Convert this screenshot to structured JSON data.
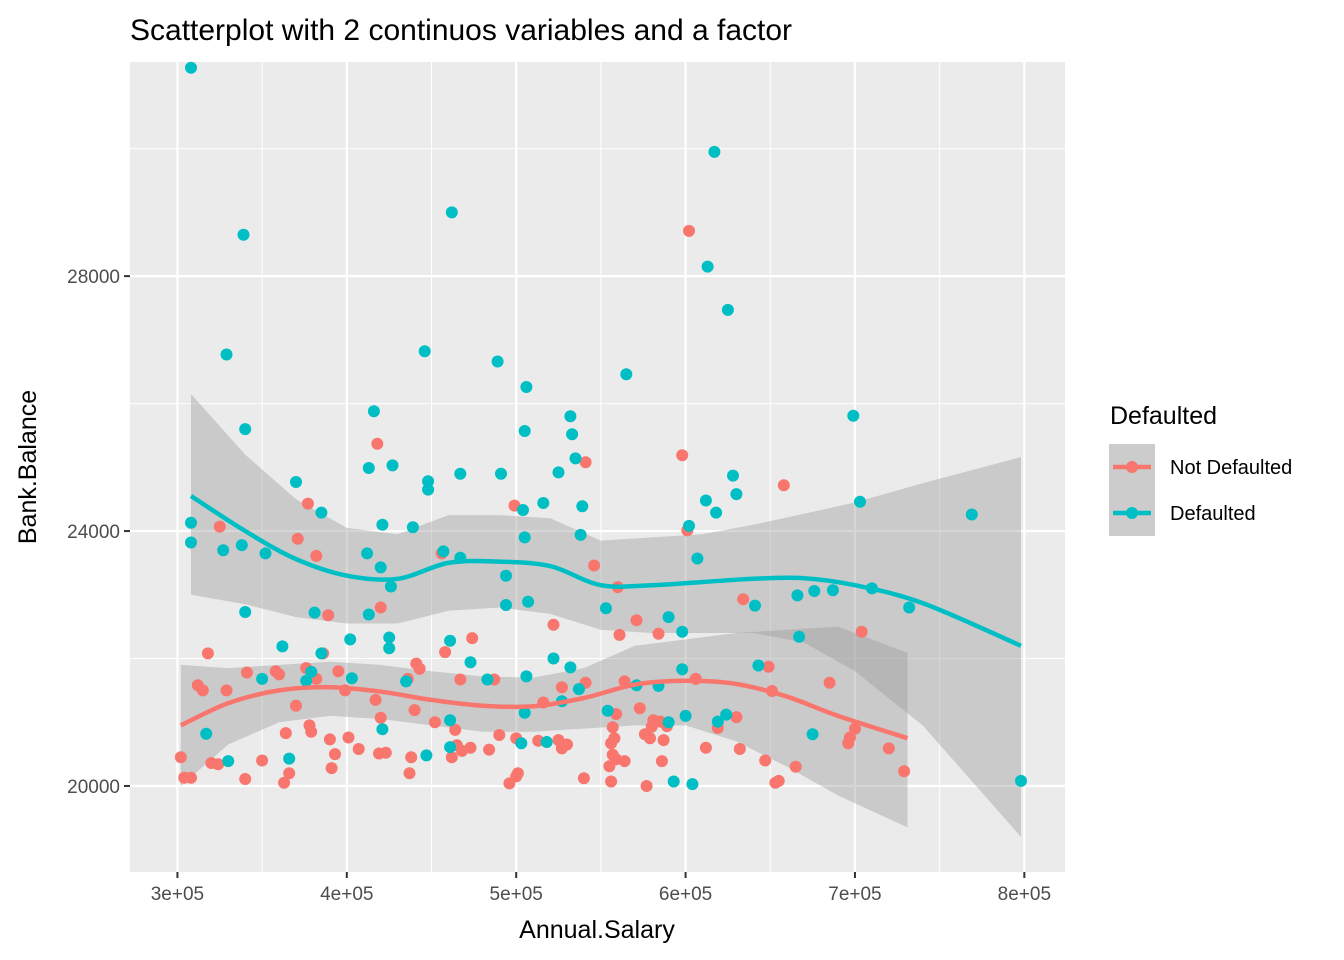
{
  "chart_data": {
    "type": "scatter",
    "title": "Scatterplot with 2 continuos variables and a factor",
    "xlabel": "Annual.Salary",
    "ylabel": "Bank.Balance",
    "xlim": [
      272000,
      824000
    ],
    "ylim": [
      18650,
      31360
    ],
    "x_ticks": [
      300000,
      400000,
      500000,
      600000,
      700000,
      800000
    ],
    "x_tick_labels": [
      "3e+05",
      "4e+05",
      "5e+05",
      "6e+05",
      "7e+05",
      "8e+05"
    ],
    "y_ticks": [
      20000,
      24000,
      28000
    ],
    "y_tick_labels": [
      "20000",
      "24000",
      "28000"
    ],
    "grid": true,
    "legend": {
      "title": "Defaulted",
      "position": "right",
      "entries": [
        {
          "label": "Not Defaulted",
          "color": "#F8766D"
        },
        {
          "label": "Defaulted",
          "color": "#00BFC4"
        }
      ]
    },
    "series": [
      {
        "name": "Not Defaulted",
        "color": "#F8766D",
        "points": [
          [
            302000,
            20450
          ],
          [
            304000,
            20130
          ],
          [
            308000,
            20130
          ],
          [
            312000,
            21580
          ],
          [
            315000,
            21500
          ],
          [
            318000,
            22080
          ],
          [
            320000,
            20360
          ],
          [
            324000,
            20340
          ],
          [
            325000,
            24070
          ],
          [
            329000,
            21500
          ],
          [
            340000,
            20110
          ],
          [
            341000,
            21780
          ],
          [
            350000,
            20400
          ],
          [
            358000,
            21800
          ],
          [
            360000,
            21750
          ],
          [
            363000,
            20050
          ],
          [
            364000,
            20830
          ],
          [
            366000,
            20200
          ],
          [
            370000,
            21260
          ],
          [
            371000,
            23880
          ],
          [
            376000,
            21850
          ],
          [
            377000,
            24430
          ],
          [
            378000,
            20950
          ],
          [
            379000,
            20850
          ],
          [
            382000,
            21680
          ],
          [
            382000,
            23610
          ],
          [
            386000,
            22080
          ],
          [
            389000,
            22680
          ],
          [
            390000,
            20730
          ],
          [
            391000,
            20280
          ],
          [
            393000,
            20500
          ],
          [
            395000,
            21800
          ],
          [
            399000,
            21500
          ],
          [
            401000,
            20760
          ],
          [
            407000,
            20580
          ],
          [
            417000,
            21350
          ],
          [
            418000,
            25370
          ],
          [
            419000,
            20510
          ],
          [
            420000,
            21070
          ],
          [
            420000,
            22800
          ],
          [
            423000,
            20520
          ],
          [
            436000,
            21680
          ],
          [
            437000,
            20200
          ],
          [
            438000,
            20450
          ],
          [
            440000,
            21190
          ],
          [
            441000,
            21920
          ],
          [
            443000,
            21840
          ],
          [
            452000,
            21000
          ],
          [
            456000,
            23650
          ],
          [
            458000,
            22100
          ],
          [
            462000,
            20450
          ],
          [
            464000,
            20880
          ],
          [
            465000,
            20640
          ],
          [
            467000,
            21670
          ],
          [
            468000,
            20550
          ],
          [
            473000,
            20600
          ],
          [
            474000,
            22320
          ],
          [
            484000,
            20570
          ],
          [
            487000,
            21670
          ],
          [
            490000,
            20800
          ],
          [
            496000,
            20040
          ],
          [
            499000,
            24400
          ],
          [
            500000,
            20750
          ],
          [
            500000,
            20150
          ],
          [
            501000,
            20200
          ],
          [
            513000,
            20710
          ],
          [
            516000,
            21310
          ],
          [
            522000,
            22530
          ],
          [
            525000,
            20720
          ],
          [
            527000,
            20590
          ],
          [
            527000,
            21550
          ],
          [
            530000,
            20650
          ],
          [
            540000,
            20120
          ],
          [
            541000,
            21620
          ],
          [
            541000,
            25080
          ],
          [
            546000,
            23460
          ],
          [
            555000,
            20310
          ],
          [
            556000,
            20670
          ],
          [
            556000,
            20070
          ],
          [
            557000,
            20920
          ],
          [
            557000,
            20490
          ],
          [
            558000,
            20750
          ],
          [
            559000,
            21130
          ],
          [
            559000,
            20420
          ],
          [
            560000,
            23120
          ],
          [
            561000,
            22370
          ],
          [
            564000,
            20390
          ],
          [
            564000,
            21640
          ],
          [
            571000,
            22600
          ],
          [
            573000,
            21220
          ],
          [
            576000,
            20810
          ],
          [
            577000,
            20000
          ],
          [
            579000,
            20750
          ],
          [
            580000,
            20930
          ],
          [
            581000,
            21030
          ],
          [
            585000,
            21010
          ],
          [
            584000,
            22390
          ],
          [
            586000,
            20390
          ],
          [
            587000,
            20720
          ],
          [
            589000,
            20940
          ],
          [
            598000,
            25190
          ],
          [
            601000,
            24010
          ],
          [
            602000,
            28710
          ],
          [
            612000,
            20600
          ],
          [
            619000,
            20910
          ],
          [
            630000,
            21080
          ],
          [
            632000,
            20580
          ],
          [
            634000,
            22930
          ],
          [
            647000,
            20400
          ],
          [
            651000,
            21490
          ],
          [
            653000,
            20050
          ],
          [
            655000,
            20080
          ],
          [
            658000,
            24720
          ],
          [
            665000,
            20300
          ],
          [
            696000,
            20670
          ],
          [
            697000,
            20760
          ],
          [
            704000,
            22420
          ],
          [
            720000,
            20590
          ],
          [
            729000,
            20230
          ],
          [
            649000,
            21870
          ],
          [
            685000,
            21620
          ],
          [
            606000,
            21680
          ],
          [
            700000,
            20900
          ]
        ]
      },
      {
        "name": "Defaulted",
        "color": "#00BFC4",
        "points": [
          [
            308000,
            31270
          ],
          [
            308000,
            24130
          ],
          [
            308000,
            23820
          ],
          [
            317000,
            20820
          ],
          [
            327000,
            23700
          ],
          [
            329000,
            26770
          ],
          [
            330000,
            20390
          ],
          [
            338000,
            23780
          ],
          [
            339000,
            28650
          ],
          [
            340000,
            25600
          ],
          [
            340000,
            22730
          ],
          [
            350000,
            21680
          ],
          [
            352000,
            23650
          ],
          [
            362000,
            22190
          ],
          [
            366000,
            20430
          ],
          [
            370000,
            24770
          ],
          [
            376000,
            21650
          ],
          [
            379000,
            21790
          ],
          [
            381000,
            22720
          ],
          [
            385000,
            22080
          ],
          [
            385000,
            24290
          ],
          [
            402000,
            22300
          ],
          [
            403000,
            21690
          ],
          [
            412000,
            23650
          ],
          [
            413000,
            22690
          ],
          [
            413000,
            24990
          ],
          [
            416000,
            25880
          ],
          [
            420000,
            23430
          ],
          [
            421000,
            24100
          ],
          [
            421000,
            20890
          ],
          [
            425000,
            22160
          ],
          [
            425000,
            22330
          ],
          [
            426000,
            23130
          ],
          [
            427000,
            25030
          ],
          [
            435000,
            21640
          ],
          [
            439000,
            24060
          ],
          [
            446000,
            26820
          ],
          [
            447000,
            20480
          ],
          [
            448000,
            24780
          ],
          [
            448000,
            24650
          ],
          [
            457000,
            23680
          ],
          [
            461000,
            21030
          ],
          [
            461000,
            20610
          ],
          [
            461000,
            22280
          ],
          [
            462000,
            29000
          ],
          [
            467000,
            24900
          ],
          [
            467000,
            23580
          ],
          [
            473000,
            21940
          ],
          [
            483000,
            21670
          ],
          [
            489000,
            26660
          ],
          [
            491000,
            24900
          ],
          [
            494000,
            23300
          ],
          [
            494000,
            22840
          ],
          [
            503000,
            20670
          ],
          [
            504000,
            24330
          ],
          [
            505000,
            21150
          ],
          [
            505000,
            25570
          ],
          [
            505000,
            23900
          ],
          [
            506000,
            26260
          ],
          [
            506000,
            21720
          ],
          [
            507000,
            22890
          ],
          [
            516000,
            24440
          ],
          [
            518000,
            20690
          ],
          [
            522000,
            22000
          ],
          [
            525000,
            24920
          ],
          [
            527000,
            21330
          ],
          [
            532000,
            21860
          ],
          [
            532000,
            25800
          ],
          [
            533000,
            25520
          ],
          [
            535000,
            25140
          ],
          [
            537000,
            21520
          ],
          [
            538000,
            23940
          ],
          [
            539000,
            24390
          ],
          [
            553000,
            22790
          ],
          [
            554000,
            21180
          ],
          [
            565000,
            26460
          ],
          [
            571000,
            21580
          ],
          [
            584000,
            21570
          ],
          [
            590000,
            21000
          ],
          [
            590000,
            22650
          ],
          [
            593000,
            20070
          ],
          [
            598000,
            21830
          ],
          [
            598000,
            22420
          ],
          [
            600000,
            21100
          ],
          [
            602000,
            24080
          ],
          [
            604000,
            20030
          ],
          [
            607000,
            23570
          ],
          [
            612000,
            24480
          ],
          [
            613000,
            28150
          ],
          [
            617000,
            29950
          ],
          [
            618000,
            24290
          ],
          [
            619000,
            21010
          ],
          [
            624000,
            21120
          ],
          [
            625000,
            27470
          ],
          [
            628000,
            24870
          ],
          [
            630000,
            24580
          ],
          [
            641000,
            22830
          ],
          [
            643000,
            21890
          ],
          [
            666000,
            22990
          ],
          [
            667000,
            22340
          ],
          [
            675000,
            20810
          ],
          [
            676000,
            23060
          ],
          [
            687000,
            23070
          ],
          [
            699000,
            25810
          ],
          [
            703000,
            24460
          ],
          [
            710000,
            23100
          ],
          [
            732000,
            22800
          ],
          [
            769000,
            24260
          ],
          [
            798000,
            20080
          ]
        ]
      }
    ],
    "smooth_lines": [
      {
        "name": "Not Defaulted",
        "method": "loess",
        "x": [
          302000,
          330000,
          360000,
          390000,
          420000,
          450000,
          480000,
          510000,
          540000,
          570000,
          600000,
          630000,
          660000,
          690000,
          731000
        ],
        "y": [
          20950,
          21300,
          21500,
          21550,
          21480,
          21350,
          21260,
          21250,
          21380,
          21590,
          21650,
          21600,
          21400,
          21100,
          20750
        ],
        "ci_low": [
          20000,
          20650,
          21000,
          21100,
          21050,
          20950,
          20850,
          20850,
          20900,
          20950,
          20950,
          20700,
          20300,
          19850,
          19350
        ],
        "ci_high": [
          21900,
          21850,
          21900,
          21950,
          21900,
          21800,
          21720,
          21700,
          21850,
          22200,
          22300,
          22400,
          22450,
          22500,
          22090
        ]
      },
      {
        "name": "Defaulted",
        "method": "loess",
        "x": [
          308000,
          340000,
          370000,
          400000,
          430000,
          460000,
          490000,
          520000,
          550000,
          580000,
          610000,
          640000,
          670000,
          700000,
          740000,
          798000
        ],
        "y": [
          24550,
          24000,
          23560,
          23300,
          23250,
          23500,
          23520,
          23450,
          23150,
          23150,
          23200,
          23250,
          23260,
          23150,
          22870,
          22200
        ],
        "ci_low": [
          23000,
          22850,
          22650,
          22550,
          22550,
          22750,
          22800,
          22700,
          22450,
          22400,
          22400,
          22400,
          22250,
          21800,
          20950,
          19200
        ],
        "ci_high": [
          26150,
          25200,
          24500,
          24050,
          23950,
          24250,
          24250,
          24200,
          23850,
          23900,
          23950,
          24100,
          24270,
          24450,
          24750,
          25160
        ]
      }
    ]
  }
}
